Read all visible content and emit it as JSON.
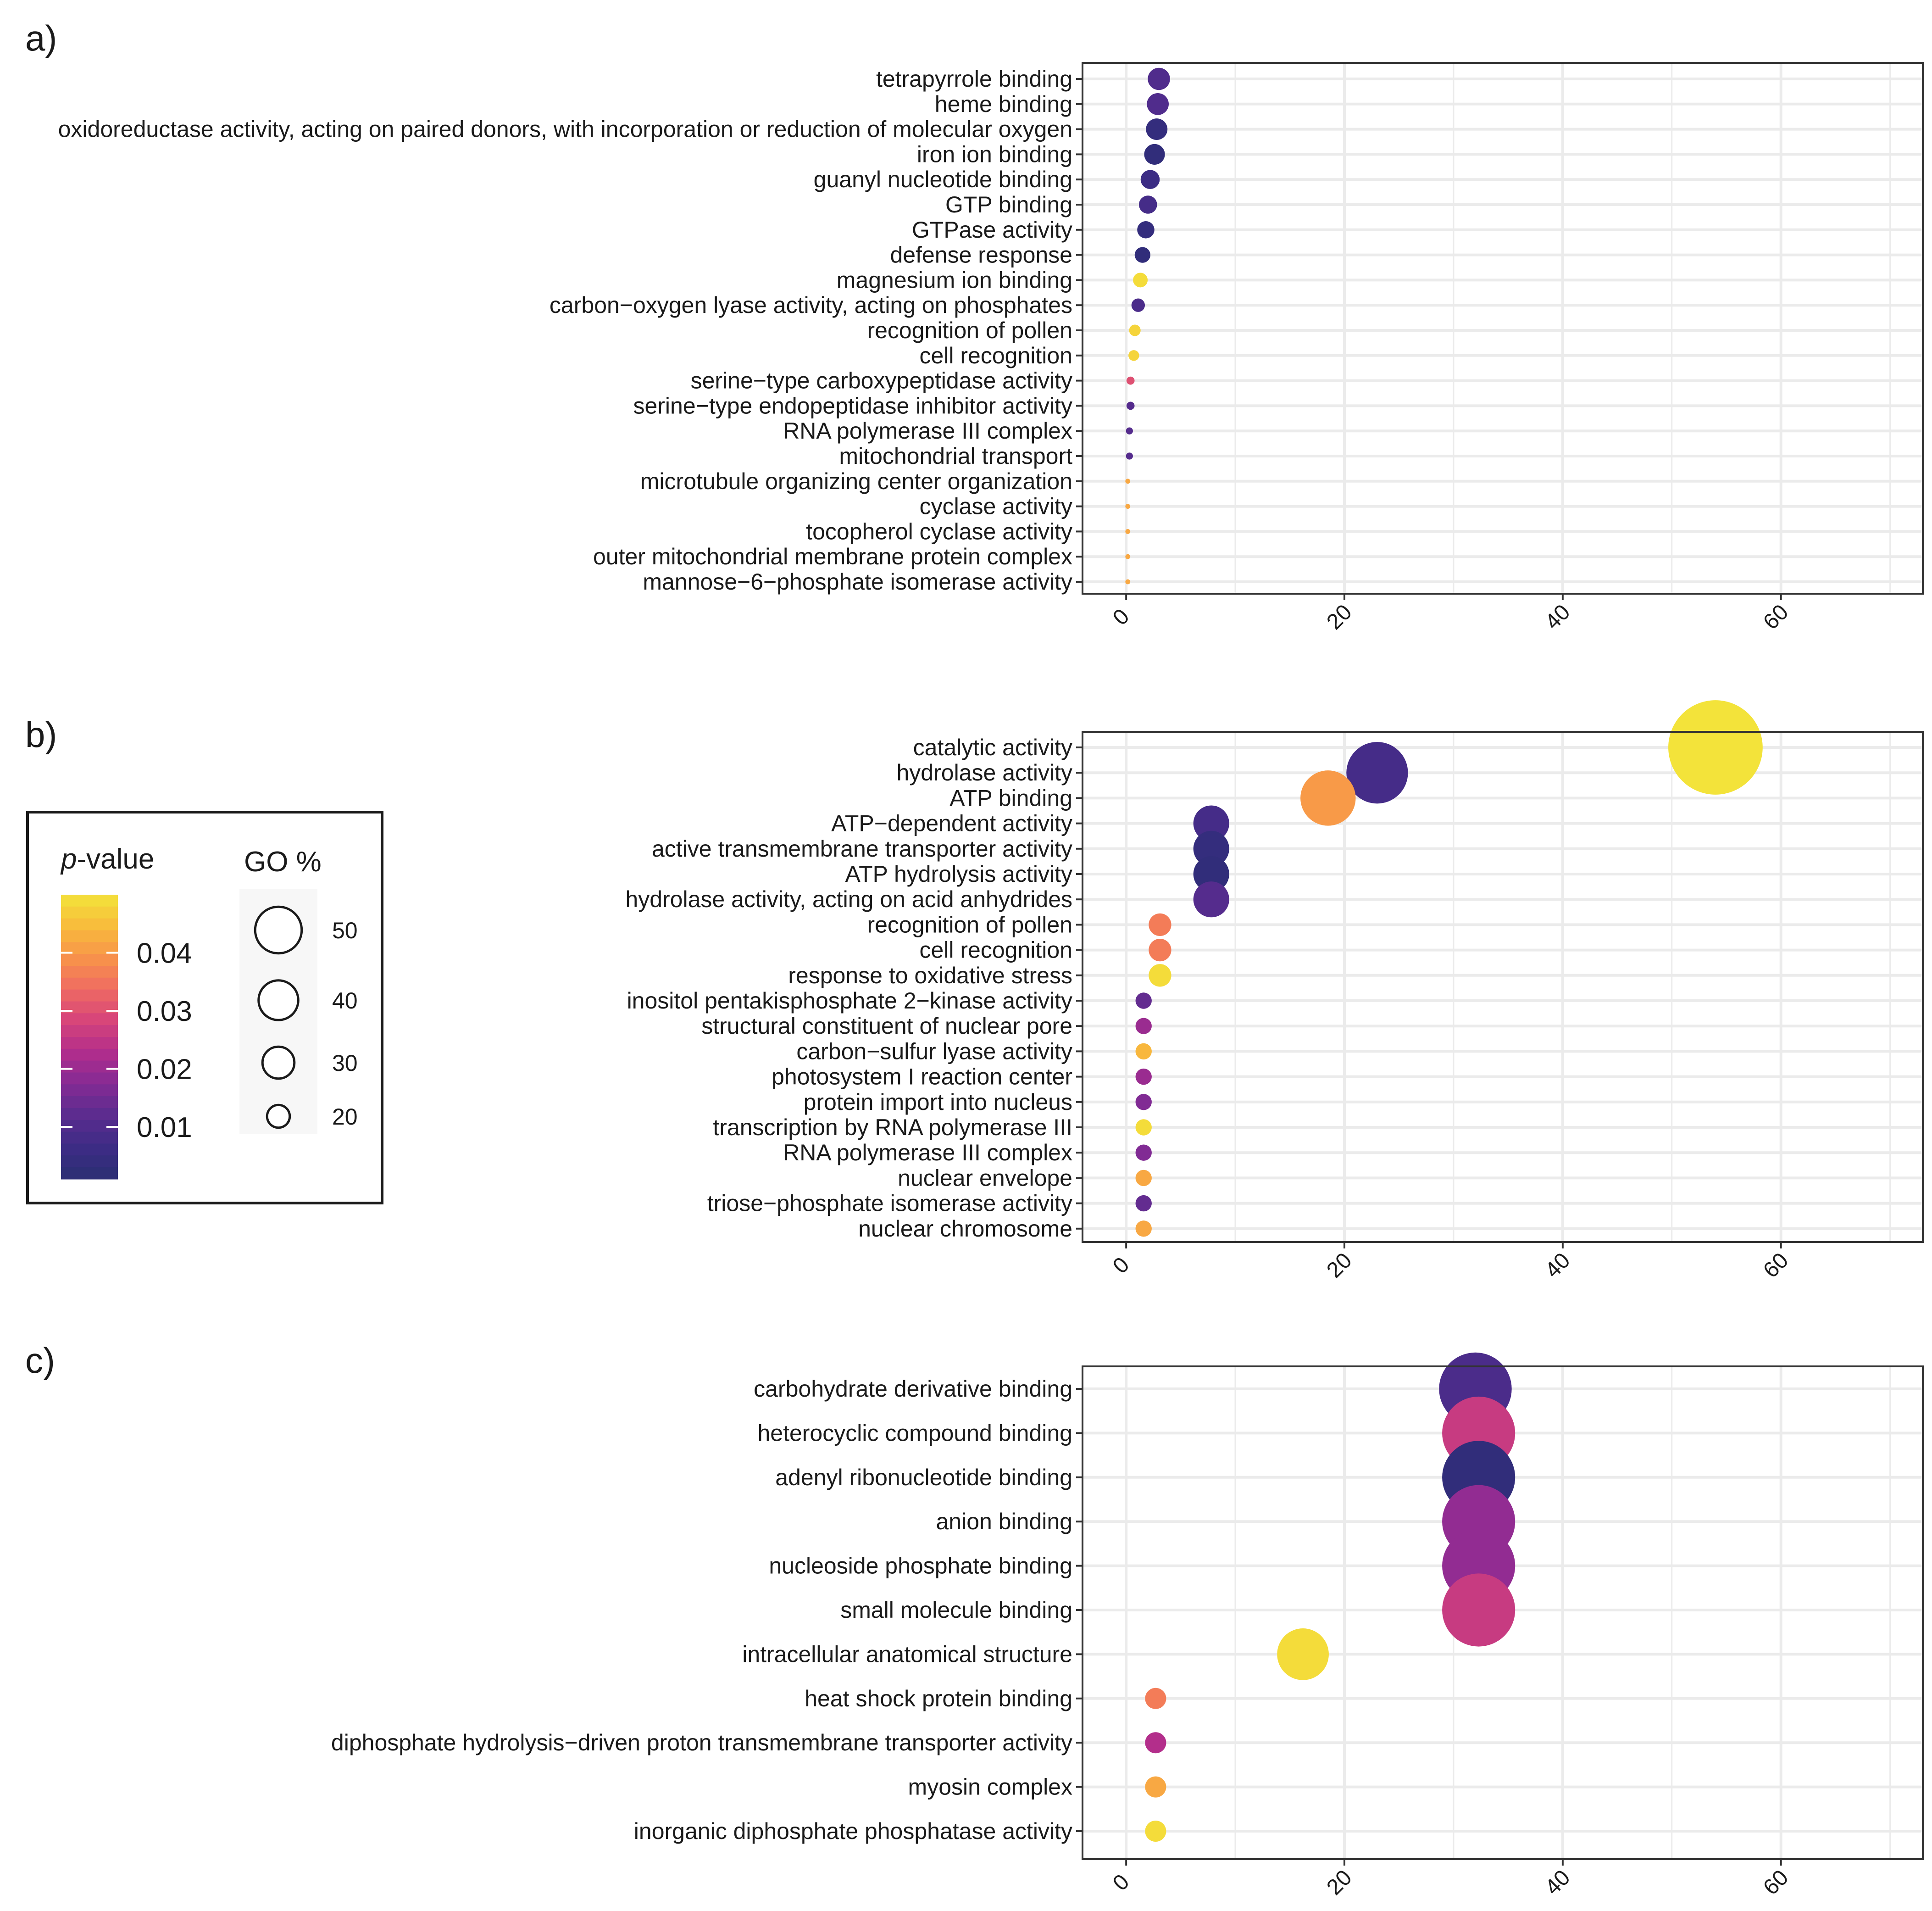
{
  "legend": {
    "color_title": "p-value",
    "color_title_italic": "p",
    "color_title_rest": "-value",
    "color_ticks": [
      "0.04",
      "0.03",
      "0.02",
      "0.01"
    ],
    "color_tick_values": [
      0.04,
      0.03,
      0.02,
      0.01
    ],
    "color_range": [
      0.001,
      0.05
    ],
    "size_title": "GO %",
    "size_labels": [
      "50",
      "40",
      "30",
      "20"
    ],
    "size_values": [
      50,
      40,
      30,
      20
    ]
  },
  "colors": {
    "palette": [
      "#2a2e73",
      "#3d2c85",
      "#5a2c8f",
      "#842b94",
      "#b12d8c",
      "#d6447a",
      "#ef6a63",
      "#f8934a",
      "#f8bb3c",
      "#f3e33a"
    ],
    "grid": "#ebebeb",
    "panel_border": "#333333"
  },
  "chart_data": [
    {
      "panel_label": "a)",
      "type": "scatter",
      "xlim": [
        -4,
        73
      ],
      "x_ticks": [
        "0",
        "20",
        "40",
        "60"
      ],
      "x_tick_values": [
        0,
        20,
        40,
        60
      ],
      "categories": [
        "tetrapyrrole binding",
        "heme binding",
        "oxidoreductase activity, acting on paired donors, with incorporation or reduction of molecular oxygen",
        "iron ion binding",
        "guanyl nucleotide binding",
        "GTP binding",
        "GTPase activity",
        "defense response",
        "magnesium ion binding",
        "carbon−oxygen lyase activity, acting on phosphates",
        "recognition of pollen",
        "cell recognition",
        "serine−type carboxypeptidase activity",
        "serine−type endopeptidase inhibitor activity",
        "RNA polymerase III complex",
        "mitochondrial transport",
        "microtubule organizing center organization",
        "cyclase activity",
        "tocopherol cyclase activity",
        "outer mitochondrial membrane protein complex",
        "mannose−6−phosphate isomerase activity"
      ],
      "values": [
        3.0,
        2.9,
        2.8,
        2.6,
        2.2,
        2.0,
        1.8,
        1.5,
        1.3,
        1.1,
        0.8,
        0.7,
        0.4,
        0.4,
        0.3,
        0.3,
        0.15,
        0.15,
        0.15,
        0.15,
        0.15
      ],
      "p_values": [
        0.01,
        0.01,
        0.004,
        0.003,
        0.006,
        0.008,
        0.004,
        0.003,
        0.049,
        0.009,
        0.048,
        0.048,
        0.03,
        0.011,
        0.011,
        0.011,
        0.042,
        0.042,
        0.042,
        0.042,
        0.042
      ]
    },
    {
      "panel_label": "b)",
      "type": "scatter",
      "xlim": [
        -4,
        73
      ],
      "x_ticks": [
        "0",
        "20",
        "40",
        "60"
      ],
      "x_tick_values": [
        0,
        20,
        40,
        60
      ],
      "categories": [
        "catalytic activity",
        "hydrolase activity",
        "ATP binding",
        "ATP−dependent activity",
        "active transmembrane transporter activity",
        "ATP hydrolysis activity",
        "hydrolase activity, acting on acid anhydrides",
        "recognition of pollen",
        "cell recognition",
        "response to oxidative stress",
        "inositol pentakisphosphate 2−kinase activity",
        "structural constituent of nuclear pore",
        "carbon−sulfur lyase activity",
        "photosystem I reaction center",
        "protein import into nucleus",
        "transcription by RNA polymerase III",
        "RNA polymerase III complex",
        "nuclear envelope",
        "triose−phosphate isomerase activity",
        "nuclear chromosome"
      ],
      "values": [
        54,
        23,
        18.5,
        7.8,
        7.8,
        7.8,
        7.8,
        3.1,
        3.1,
        3.1,
        1.6,
        1.6,
        1.6,
        1.6,
        1.6,
        1.6,
        1.6,
        1.6,
        1.6,
        1.6
      ],
      "p_values": [
        0.05,
        0.008,
        0.04,
        0.008,
        0.004,
        0.003,
        0.011,
        0.036,
        0.036,
        0.049,
        0.013,
        0.02,
        0.044,
        0.02,
        0.017,
        0.049,
        0.017,
        0.042,
        0.013,
        0.042
      ]
    },
    {
      "panel_label": "c)",
      "type": "scatter",
      "xlim": [
        -4,
        73
      ],
      "x_ticks": [
        "0",
        "20",
        "40",
        "60"
      ],
      "x_tick_values": [
        0,
        20,
        40,
        60
      ],
      "categories": [
        "carbohydrate derivative binding",
        "heterocyclic compound binding",
        "adenyl ribonucleotide binding",
        "anion binding",
        "nucleoside phosphate binding",
        "small molecule binding",
        "intracellular anatomical structure",
        "heat shock protein binding",
        "diphosphate hydrolysis−driven proton transmembrane transporter activity",
        "myosin complex",
        "inorganic diphosphate phosphatase activity"
      ],
      "values": [
        32,
        32.3,
        32.3,
        32.3,
        32.3,
        32.3,
        16.2,
        2.7,
        2.7,
        2.7,
        2.7
      ],
      "p_values": [
        0.009,
        0.026,
        0.003,
        0.019,
        0.019,
        0.026,
        0.049,
        0.036,
        0.023,
        0.042,
        0.049
      ]
    }
  ]
}
